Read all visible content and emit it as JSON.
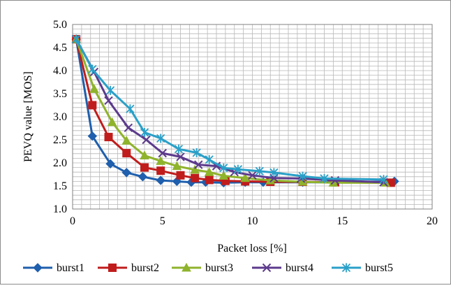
{
  "chart_data": {
    "type": "line",
    "title": "",
    "xlabel": "Packet loss [%]",
    "ylabel": "PEVQ value [MOS]",
    "xlim": [
      0,
      20
    ],
    "ylim": [
      1.0,
      5.0
    ],
    "x_ticks": [
      0,
      5,
      10,
      15,
      20
    ],
    "y_ticks": [
      1.0,
      1.5,
      2.0,
      2.5,
      3.0,
      3.5,
      4.0,
      4.5,
      5.0
    ],
    "x_tick_labels": [
      "0",
      "5",
      "10",
      "15",
      "20"
    ],
    "y_tick_labels": [
      "1.0",
      "1.5",
      "2.0",
      "2.5",
      "3.0",
      "3.5",
      "4.0",
      "4.5",
      "5.0"
    ],
    "grid": true,
    "legend_position": "bottom",
    "series": [
      {
        "name": "burst1",
        "color": "#1f5fad",
        "marker": "diamond",
        "points": [
          [
            0.2,
            4.68
          ],
          [
            1.1,
            2.58
          ],
          [
            2.1,
            1.98
          ],
          [
            3.0,
            1.79
          ],
          [
            3.9,
            1.7
          ],
          [
            4.9,
            1.62
          ],
          [
            5.8,
            1.6
          ],
          [
            6.6,
            1.58
          ],
          [
            7.4,
            1.58
          ],
          [
            8.4,
            1.57
          ],
          [
            9.6,
            1.58
          ],
          [
            10.6,
            1.58
          ],
          [
            12.8,
            1.58
          ],
          [
            14.6,
            1.58
          ],
          [
            17.9,
            1.6
          ]
        ]
      },
      {
        "name": "burst2",
        "color": "#c01c1c",
        "marker": "square",
        "points": [
          [
            0.2,
            4.68
          ],
          [
            1.1,
            3.25
          ],
          [
            2.0,
            2.56
          ],
          [
            3.0,
            2.21
          ],
          [
            4.0,
            1.9
          ],
          [
            4.9,
            1.83
          ],
          [
            6.0,
            1.73
          ],
          [
            6.8,
            1.67
          ],
          [
            7.6,
            1.63
          ],
          [
            8.5,
            1.61
          ],
          [
            9.6,
            1.6
          ],
          [
            11.0,
            1.59
          ],
          [
            12.8,
            1.59
          ],
          [
            14.6,
            1.58
          ],
          [
            17.7,
            1.57
          ]
        ]
      },
      {
        "name": "burst3",
        "color": "#8fb32c",
        "marker": "triangle",
        "points": [
          [
            0.2,
            4.68
          ],
          [
            1.2,
            3.6
          ],
          [
            2.2,
            2.88
          ],
          [
            3.0,
            2.48
          ],
          [
            4.0,
            2.16
          ],
          [
            4.9,
            2.04
          ],
          [
            5.8,
            1.93
          ],
          [
            6.8,
            1.85
          ],
          [
            7.6,
            1.8
          ],
          [
            8.4,
            1.72
          ],
          [
            9.6,
            1.67
          ],
          [
            11.0,
            1.62
          ],
          [
            12.8,
            1.59
          ],
          [
            14.5,
            1.57
          ],
          [
            17.4,
            1.57
          ]
        ]
      },
      {
        "name": "burst4",
        "color": "#5c3a8c",
        "marker": "x",
        "points": [
          [
            0.2,
            4.68
          ],
          [
            1.2,
            3.97
          ],
          [
            2.0,
            3.35
          ],
          [
            3.1,
            2.76
          ],
          [
            4.1,
            2.5
          ],
          [
            5.0,
            2.21
          ],
          [
            6.0,
            2.13
          ],
          [
            7.0,
            1.96
          ],
          [
            8.0,
            1.93
          ],
          [
            9.0,
            1.8
          ],
          [
            10.0,
            1.73
          ],
          [
            11.2,
            1.67
          ],
          [
            12.7,
            1.66
          ],
          [
            14.6,
            1.62
          ],
          [
            17.3,
            1.58
          ]
        ]
      },
      {
        "name": "burst5",
        "color": "#2aa0c8",
        "marker": "star",
        "points": [
          [
            0.2,
            4.68
          ],
          [
            1.1,
            4.03
          ],
          [
            2.1,
            3.57
          ],
          [
            3.2,
            3.17
          ],
          [
            4.0,
            2.66
          ],
          [
            4.9,
            2.53
          ],
          [
            5.9,
            2.3
          ],
          [
            6.9,
            2.22
          ],
          [
            7.6,
            2.07
          ],
          [
            8.4,
            1.89
          ],
          [
            9.2,
            1.86
          ],
          [
            10.4,
            1.82
          ],
          [
            11.2,
            1.79
          ],
          [
            12.8,
            1.71
          ],
          [
            14.0,
            1.66
          ],
          [
            17.3,
            1.64
          ]
        ]
      }
    ]
  }
}
